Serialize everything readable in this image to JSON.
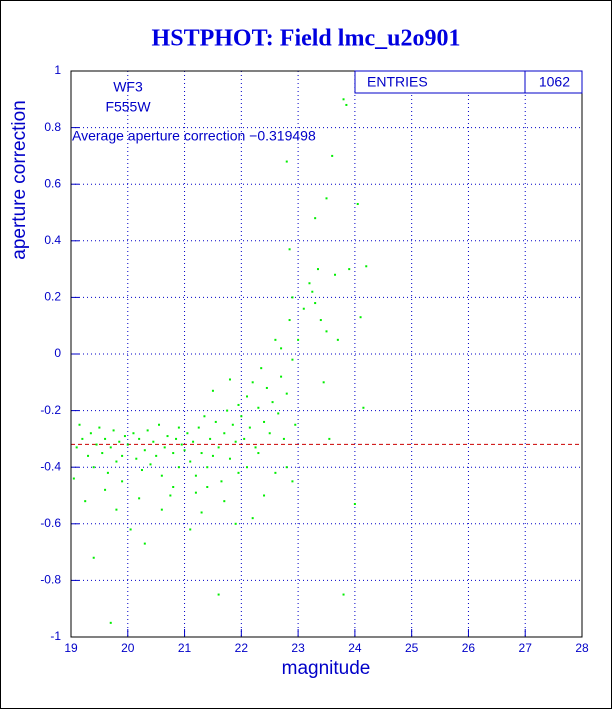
{
  "chart_data": {
    "type": "scatter",
    "title": "HSTPHOT: Field lmc_u2o901",
    "x_label": "magnitude",
    "y_label": "aperture correction",
    "annotations": [
      "WF3",
      "F555W",
      "Average aperture correction −0.319498"
    ],
    "average": -0.319498,
    "average_color": "#cc0000",
    "stats": {
      "label": "ENTRIES",
      "value": 1062
    },
    "xlim": [
      19,
      28
    ],
    "ylim": [
      -1,
      1
    ],
    "xticks": [
      19,
      20,
      21,
      22,
      23,
      24,
      25,
      26,
      27,
      28
    ],
    "yticks": [
      -1,
      -0.8,
      -0.6,
      -0.4,
      -0.2,
      0,
      0.2,
      0.4,
      0.6,
      0.8,
      1
    ],
    "grid": true,
    "series": [
      {
        "color": "#00ee00",
        "x": [
          19.1,
          19.2,
          19.3,
          19.35,
          19.4,
          19.45,
          19.5,
          19.55,
          19.6,
          19.65,
          19.7,
          19.75,
          19.8,
          19.85,
          19.9,
          19.95,
          19.05,
          19.25,
          19.4,
          19.7,
          19.8,
          19.15,
          19.6,
          19.9,
          20.0,
          20.05,
          20.1,
          20.15,
          20.2,
          20.25,
          20.3,
          20.35,
          20.4,
          20.45,
          20.5,
          20.55,
          20.6,
          20.65,
          20.7,
          20.75,
          20.8,
          20.85,
          20.9,
          20.95,
          20.3,
          20.6,
          20.8,
          20.2,
          20.9,
          21.0,
          21.05,
          21.1,
          21.15,
          21.2,
          21.25,
          21.3,
          21.35,
          21.4,
          21.45,
          21.5,
          21.55,
          21.6,
          21.65,
          21.7,
          21.75,
          21.8,
          21.85,
          21.9,
          21.95,
          21.1,
          21.3,
          21.6,
          21.7,
          21.9,
          21.4,
          21.8,
          21.5,
          21.2,
          21.95,
          22.0,
          22.05,
          22.1,
          22.15,
          22.2,
          22.25,
          22.3,
          22.35,
          22.4,
          22.45,
          22.5,
          22.55,
          22.6,
          22.65,
          22.7,
          22.75,
          22.8,
          22.85,
          22.9,
          22.95,
          22.2,
          22.4,
          22.6,
          22.8,
          22.9,
          22.1,
          22.3,
          22.7,
          22.8,
          22.85,
          22.9,
          23.0,
          23.1,
          23.2,
          23.25,
          23.3,
          23.35,
          23.4,
          23.45,
          23.5,
          23.55,
          23.6,
          23.65,
          23.7,
          23.8,
          23.85,
          23.9,
          24.0,
          24.05,
          24.1,
          24.2,
          24.15,
          23.8,
          23.3,
          23.5
        ],
        "values": [
          -0.33,
          -0.3,
          -0.36,
          -0.28,
          -0.4,
          -0.32,
          -0.26,
          -0.35,
          -0.3,
          -0.42,
          -0.33,
          -0.27,
          -0.38,
          -0.31,
          -0.45,
          -0.29,
          -0.44,
          -0.52,
          -0.72,
          -0.95,
          -0.55,
          -0.25,
          -0.48,
          -0.36,
          -0.32,
          -0.62,
          -0.28,
          -0.37,
          -0.3,
          -0.41,
          -0.34,
          -0.27,
          -0.39,
          -0.31,
          -0.36,
          -0.25,
          -0.43,
          -0.33,
          -0.29,
          -0.5,
          -0.35,
          -0.3,
          -0.4,
          -0.32,
          -0.67,
          -0.55,
          -0.47,
          -0.51,
          -0.26,
          -0.34,
          -0.28,
          -0.38,
          -0.31,
          -0.43,
          -0.26,
          -0.35,
          -0.22,
          -0.4,
          -0.3,
          -0.36,
          -0.24,
          -0.33,
          -0.45,
          -0.28,
          -0.2,
          -0.37,
          -0.25,
          -0.31,
          -0.18,
          -0.62,
          -0.56,
          -0.85,
          -0.52,
          -0.6,
          -0.47,
          -0.09,
          -0.13,
          -0.49,
          -0.42,
          -0.22,
          -0.3,
          -0.15,
          -0.26,
          -0.1,
          -0.33,
          -0.19,
          -0.05,
          -0.24,
          -0.12,
          -0.28,
          -0.17,
          0.05,
          -0.21,
          -0.08,
          -0.3,
          -0.14,
          0.12,
          -0.02,
          -0.25,
          -0.58,
          -0.5,
          -0.42,
          -0.4,
          -0.45,
          -0.4,
          -0.35,
          0.02,
          0.68,
          0.37,
          0.2,
          0.05,
          0.16,
          0.25,
          0.22,
          0.48,
          0.3,
          0.12,
          -0.1,
          0.55,
          -0.3,
          0.7,
          0.28,
          0.05,
          0.9,
          0.88,
          0.3,
          -0.53,
          0.53,
          0.13,
          0.31,
          -0.19,
          -0.85,
          0.18,
          0.08
        ]
      }
    ]
  }
}
